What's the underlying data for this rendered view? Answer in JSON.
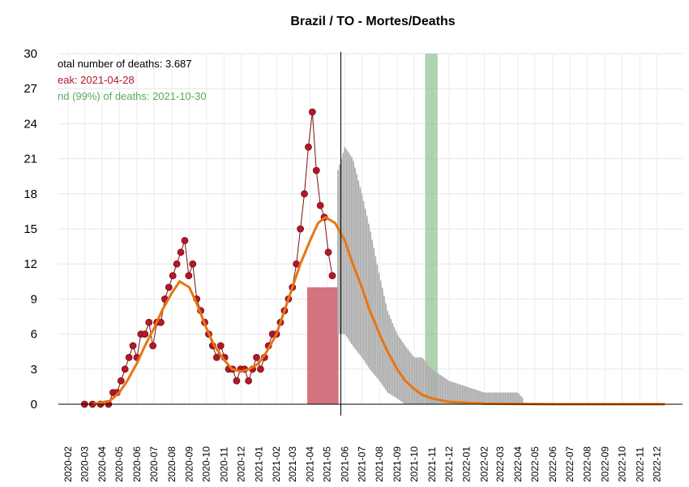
{
  "chart_data": {
    "type": "line",
    "title": "Brazil / TO - Mortes/Deaths",
    "xlabel": "",
    "ylabel": "",
    "ylim": [
      0,
      30
    ],
    "yticks": [
      0,
      3,
      6,
      9,
      12,
      15,
      18,
      21,
      24,
      27,
      30
    ],
    "xlim": [
      "2020-01-15",
      "2023-01-15"
    ],
    "xtick_labels": [
      "2020-02",
      "2020-03",
      "2020-04",
      "2020-05",
      "2020-06",
      "2020-07",
      "2020-08",
      "2020-09",
      "2020-10",
      "2020-11",
      "2020-12",
      "2021-01",
      "2021-02",
      "2021-03",
      "2021-04",
      "2021-05",
      "2021-06",
      "2021-07",
      "2021-08",
      "2021-09",
      "2021-10",
      "2021-11",
      "2021-12",
      "2022-01",
      "2022-02",
      "2022-03",
      "2022-04",
      "2022-05",
      "2022-06",
      "2022-07",
      "2022-08",
      "2022-09",
      "2022-10",
      "2022-11",
      "2022-12"
    ],
    "grid": true,
    "annotations": [
      {
        "text": "otal number of deaths: 3.687",
        "color": "#000000"
      },
      {
        "text": "eak: 2021-04-28",
        "color": "#b2182b"
      },
      {
        "text": "nd (99%) of deaths: 2021-10-30",
        "color": "#5aa85a"
      }
    ],
    "peak_date": "2021-04-28",
    "end_date": "2021-10-30",
    "peak_band": {
      "start": "2021-03-27",
      "end": "2021-05-21",
      "color": "#cd5c6a"
    },
    "end_band": {
      "start": "2021-10-20",
      "end": "2021-11-11",
      "color": "#8fc08f"
    },
    "today_line": "2021-05-25",
    "series": [
      {
        "type": "daily_deaths",
        "color": "#b2182b",
        "points": [
          [
            "2020-03-01",
            0
          ],
          [
            "2020-03-15",
            0
          ],
          [
            "2020-03-29",
            0
          ],
          [
            "2020-04-12",
            0
          ],
          [
            "2020-04-20",
            1
          ],
          [
            "2020-04-27",
            1
          ],
          [
            "2020-05-04",
            2
          ],
          [
            "2020-05-11",
            3
          ],
          [
            "2020-05-18",
            4
          ],
          [
            "2020-05-25",
            5
          ],
          [
            "2020-06-01",
            4
          ],
          [
            "2020-06-08",
            6
          ],
          [
            "2020-06-15",
            6
          ],
          [
            "2020-06-22",
            7
          ],
          [
            "2020-06-29",
            5
          ],
          [
            "2020-07-06",
            7
          ],
          [
            "2020-07-13",
            7
          ],
          [
            "2020-07-20",
            9
          ],
          [
            "2020-07-27",
            10
          ],
          [
            "2020-08-03",
            11
          ],
          [
            "2020-08-10",
            12
          ],
          [
            "2020-08-17",
            13
          ],
          [
            "2020-08-24",
            14
          ],
          [
            "2020-08-31",
            11
          ],
          [
            "2020-09-07",
            12
          ],
          [
            "2020-09-14",
            9
          ],
          [
            "2020-09-21",
            8
          ],
          [
            "2020-09-28",
            7
          ],
          [
            "2020-10-05",
            6
          ],
          [
            "2020-10-12",
            5
          ],
          [
            "2020-10-19",
            4
          ],
          [
            "2020-10-26",
            5
          ],
          [
            "2020-11-02",
            4
          ],
          [
            "2020-11-09",
            3
          ],
          [
            "2020-11-16",
            3
          ],
          [
            "2020-11-23",
            2
          ],
          [
            "2020-11-30",
            3
          ],
          [
            "2020-12-07",
            3
          ],
          [
            "2020-12-14",
            2
          ],
          [
            "2020-12-21",
            3
          ],
          [
            "2020-12-28",
            4
          ],
          [
            "2021-01-04",
            3
          ],
          [
            "2021-01-11",
            4
          ],
          [
            "2021-01-18",
            5
          ],
          [
            "2021-01-25",
            6
          ],
          [
            "2021-02-01",
            6
          ],
          [
            "2021-02-08",
            7
          ],
          [
            "2021-02-15",
            8
          ],
          [
            "2021-02-22",
            9
          ],
          [
            "2021-03-01",
            10
          ],
          [
            "2021-03-08",
            12
          ],
          [
            "2021-03-15",
            15
          ],
          [
            "2021-03-22",
            18
          ],
          [
            "2021-03-29",
            22
          ],
          [
            "2021-04-05",
            25
          ],
          [
            "2021-04-12",
            20
          ],
          [
            "2021-04-19",
            17
          ],
          [
            "2021-04-26",
            16
          ],
          [
            "2021-05-03",
            13
          ],
          [
            "2021-05-10",
            11
          ]
        ]
      },
      {
        "type": "model_fit",
        "color": "#e87511",
        "points": [
          [
            "2020-03-15",
            0
          ],
          [
            "2020-04-15",
            0.3
          ],
          [
            "2020-05-01",
            1
          ],
          [
            "2020-05-15",
            2
          ],
          [
            "2020-06-01",
            3.5
          ],
          [
            "2020-06-15",
            5
          ],
          [
            "2020-07-01",
            6.5
          ],
          [
            "2020-07-15",
            8
          ],
          [
            "2020-08-01",
            9.5
          ],
          [
            "2020-08-15",
            10.5
          ],
          [
            "2020-09-01",
            10
          ],
          [
            "2020-09-15",
            8.5
          ],
          [
            "2020-10-01",
            6.5
          ],
          [
            "2020-10-15",
            5
          ],
          [
            "2020-11-01",
            3.8
          ],
          [
            "2020-11-15",
            3
          ],
          [
            "2020-12-01",
            2.8
          ],
          [
            "2020-12-15",
            3
          ],
          [
            "2021-01-01",
            3.5
          ],
          [
            "2021-01-15",
            4.5
          ],
          [
            "2021-02-01",
            6
          ],
          [
            "2021-02-15",
            8
          ],
          [
            "2021-03-01",
            10
          ],
          [
            "2021-03-15",
            12
          ],
          [
            "2021-04-01",
            14
          ],
          [
            "2021-04-15",
            15.5
          ],
          [
            "2021-04-28",
            16
          ],
          [
            "2021-05-15",
            15.5
          ],
          [
            "2021-06-01",
            14
          ],
          [
            "2021-06-15",
            12
          ],
          [
            "2021-07-01",
            10
          ],
          [
            "2021-07-15",
            8
          ],
          [
            "2021-08-01",
            6
          ],
          [
            "2021-08-15",
            4.5
          ],
          [
            "2021-09-01",
            3
          ],
          [
            "2021-09-15",
            2
          ],
          [
            "2021-10-01",
            1.3
          ],
          [
            "2021-10-15",
            0.8
          ],
          [
            "2021-11-01",
            0.5
          ],
          [
            "2021-12-01",
            0.2
          ],
          [
            "2022-02-01",
            0.05
          ],
          [
            "2022-06-01",
            0
          ],
          [
            "2022-12-15",
            0
          ]
        ]
      },
      {
        "type": "forecast_upper",
        "color": "#aaaaaa",
        "points": [
          [
            "2021-05-20",
            20
          ],
          [
            "2021-06-01",
            22
          ],
          [
            "2021-06-15",
            21
          ],
          [
            "2021-07-01",
            18
          ],
          [
            "2021-07-15",
            15
          ],
          [
            "2021-08-01",
            11
          ],
          [
            "2021-08-15",
            8
          ],
          [
            "2021-09-01",
            6
          ],
          [
            "2021-09-15",
            5
          ],
          [
            "2021-10-01",
            4
          ],
          [
            "2021-10-15",
            4
          ],
          [
            "2021-11-01",
            3
          ],
          [
            "2021-12-01",
            2
          ],
          [
            "2022-01-01",
            1.5
          ],
          [
            "2022-02-01",
            1
          ],
          [
            "2022-04-01",
            1
          ],
          [
            "2022-04-10",
            0.5
          ]
        ]
      },
      {
        "type": "forecast_lower",
        "color": "#aaaaaa",
        "points": [
          [
            "2021-05-20",
            6
          ],
          [
            "2021-06-01",
            6
          ],
          [
            "2021-06-15",
            5
          ],
          [
            "2021-07-01",
            4
          ],
          [
            "2021-07-15",
            3
          ],
          [
            "2021-08-01",
            2
          ],
          [
            "2021-08-15",
            1
          ],
          [
            "2021-09-01",
            0.5
          ],
          [
            "2021-09-15",
            0
          ],
          [
            "2022-04-10",
            0
          ]
        ]
      }
    ]
  }
}
